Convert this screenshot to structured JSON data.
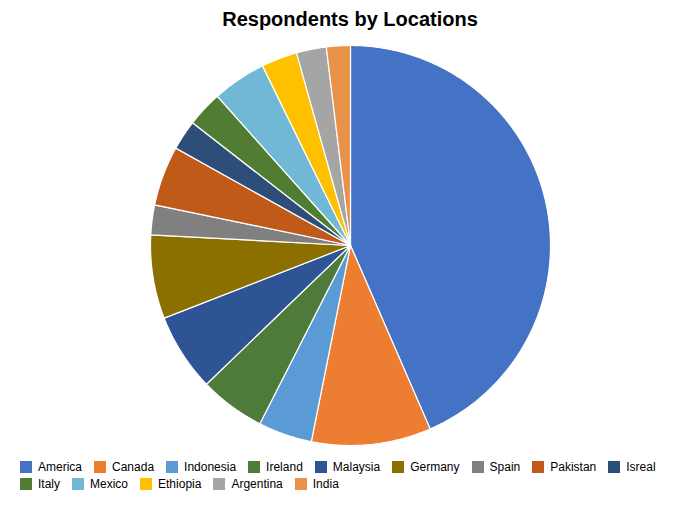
{
  "chart_data": {
    "type": "pie",
    "title": "Respondents by Locations",
    "categories": [
      "America",
      "Canada",
      "Indonesia",
      "Ireland",
      "Malaysia",
      "Germany",
      "Spain",
      "Pakistan",
      "Isreal",
      "Italy",
      "Mexico",
      "Ethiopia",
      "Argentina",
      "India"
    ],
    "values": [
      45,
      10,
      4.5,
      5.5,
      6.5,
      7.0,
      2.5,
      5.0,
      2.5,
      3.0,
      4.5,
      3.0,
      2.5,
      2.0
    ],
    "colors": [
      "#4472C4",
      "#ED7D31",
      "#5B9BD5",
      "#4E7A3A",
      "#2F5496",
      "#8B7000",
      "#808080",
      "#C05A19",
      "#2E4E7A",
      "#507D32",
      "#70B8D5",
      "#FFC000",
      "#A5A5A5",
      "#E8924A"
    ],
    "legend": "bottom"
  }
}
